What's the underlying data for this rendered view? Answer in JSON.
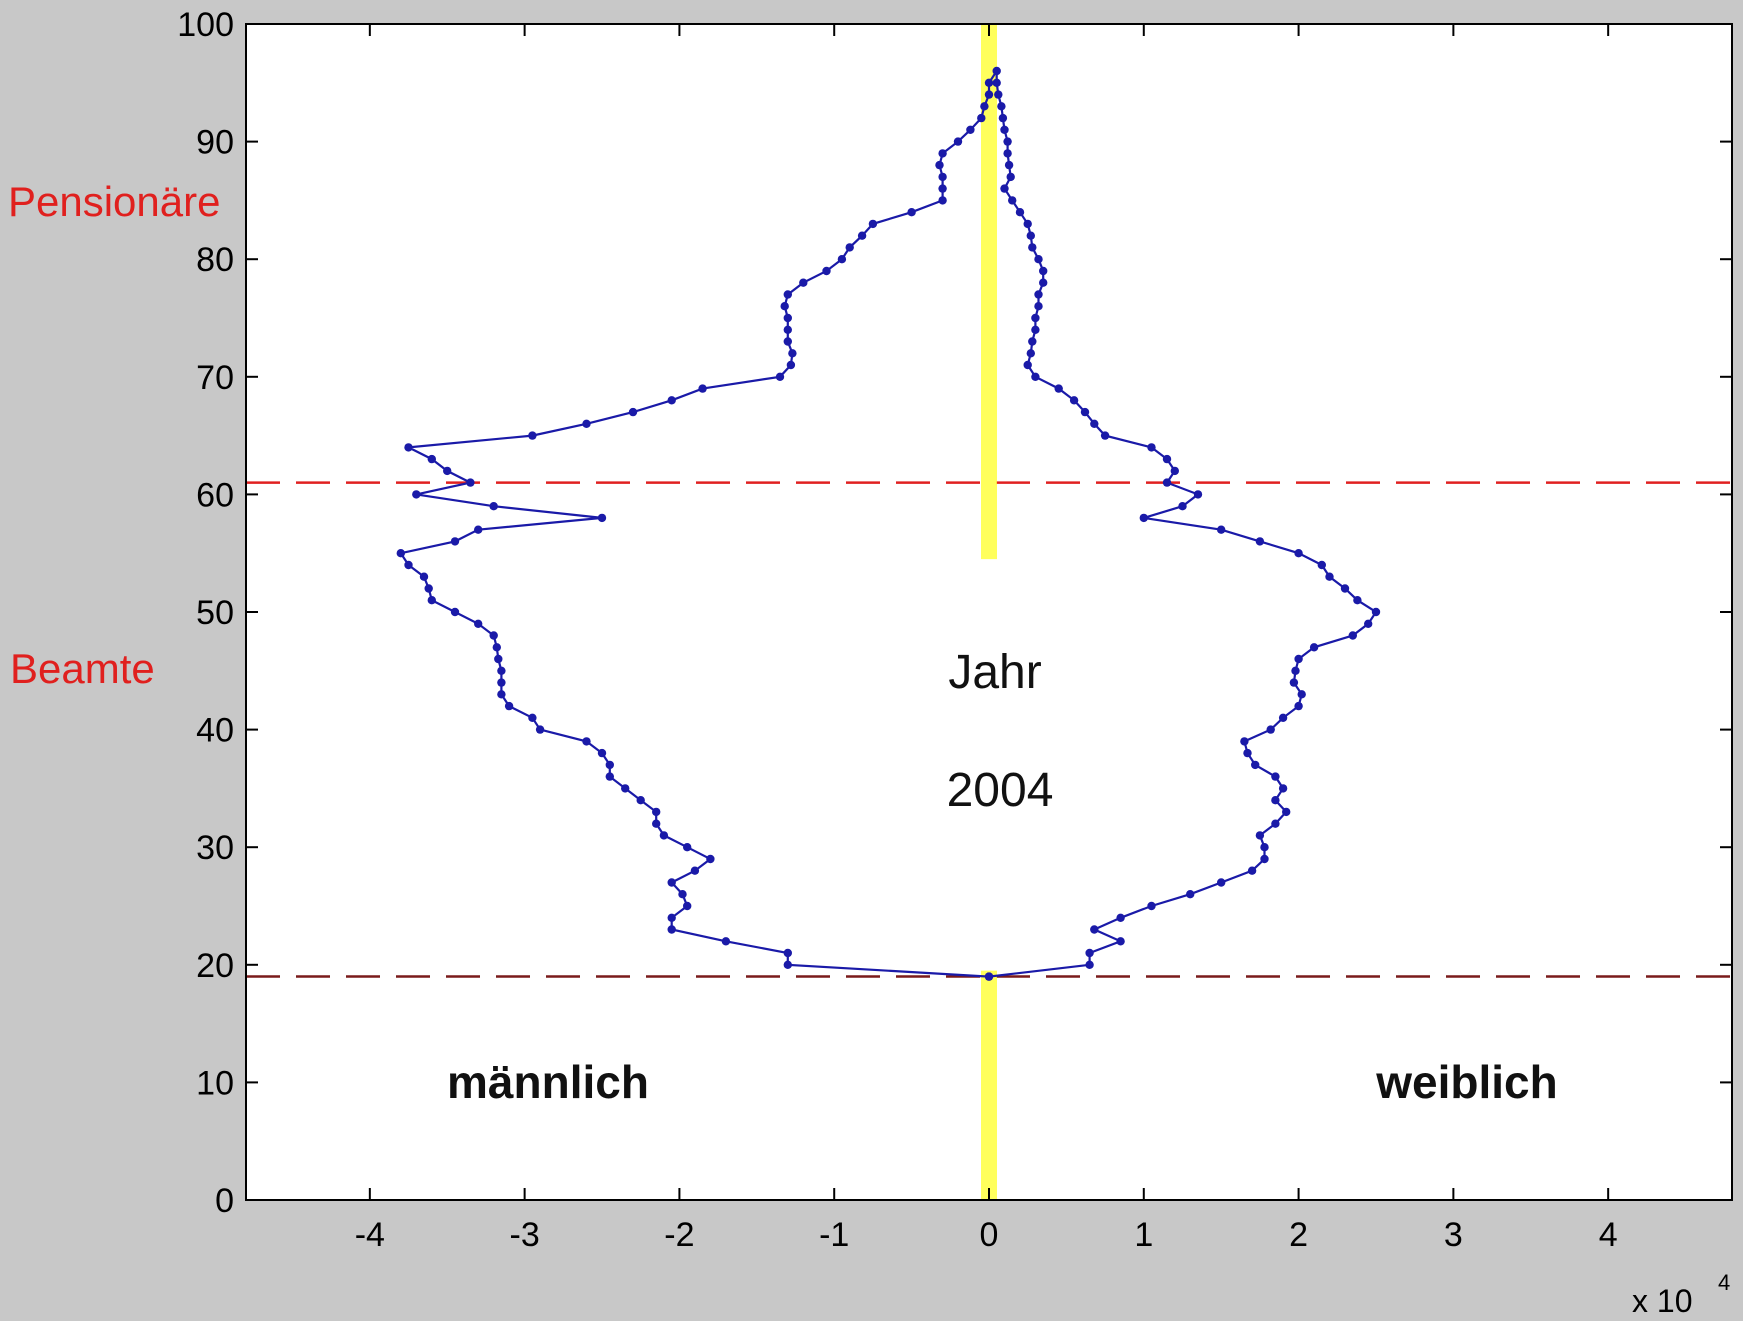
{
  "chart_data": {
    "type": "line",
    "xlim": [
      -4.8,
      4.8
    ],
    "ylim": [
      0,
      100
    ],
    "x_ticks": [
      "-4",
      "-3",
      "-2",
      "-1",
      "0",
      "1",
      "2",
      "3",
      "4"
    ],
    "y_ticks": [
      "0",
      "10",
      "20",
      "30",
      "40",
      "50",
      "60",
      "70",
      "80",
      "90",
      "100"
    ],
    "x_scale_label": "x 10",
    "x_scale_exponent": "4",
    "side_labels": {
      "upper": "Pensionäre",
      "lower": "Beamte"
    },
    "annotations": {
      "year_label": "Jahr",
      "year_value": "2004",
      "left_group": "männlich",
      "right_group": "weiblich"
    },
    "reference_lines": [
      {
        "y": 61,
        "color": "#e02020",
        "style": "dashed"
      },
      {
        "y": 19,
        "color": "#7a1a1a",
        "style": "dashed"
      }
    ],
    "center_line": {
      "x": 0,
      "color": "#ffff40"
    },
    "series": [
      {
        "color": "#1a1aa8",
        "points": [
          [
            0,
            19
          ],
          [
            -1.3,
            20
          ],
          [
            -1.3,
            21
          ],
          [
            -1.7,
            22
          ],
          [
            -2.05,
            23
          ],
          [
            -2.05,
            24
          ],
          [
            -1.95,
            25
          ],
          [
            -1.98,
            26
          ],
          [
            -2.05,
            27
          ],
          [
            -1.9,
            28
          ],
          [
            -1.8,
            29
          ],
          [
            -1.95,
            30
          ],
          [
            -2.1,
            31
          ],
          [
            -2.15,
            32
          ],
          [
            -2.15,
            33
          ],
          [
            -2.25,
            34
          ],
          [
            -2.35,
            35
          ],
          [
            -2.45,
            36
          ],
          [
            -2.45,
            37
          ],
          [
            -2.5,
            38
          ],
          [
            -2.6,
            39
          ],
          [
            -2.9,
            40
          ],
          [
            -2.95,
            41
          ],
          [
            -3.1,
            42
          ],
          [
            -3.15,
            43
          ],
          [
            -3.15,
            44
          ],
          [
            -3.15,
            45
          ],
          [
            -3.17,
            46
          ],
          [
            -3.18,
            47
          ],
          [
            -3.2,
            48
          ],
          [
            -3.3,
            49
          ],
          [
            -3.45,
            50
          ],
          [
            -3.6,
            51
          ],
          [
            -3.62,
            52
          ],
          [
            -3.65,
            53
          ],
          [
            -3.75,
            54
          ],
          [
            -3.8,
            55
          ],
          [
            -3.45,
            56
          ],
          [
            -3.3,
            57
          ],
          [
            -2.5,
            58
          ],
          [
            -3.2,
            59
          ],
          [
            -3.7,
            60
          ],
          [
            -3.35,
            61
          ],
          [
            -3.5,
            62
          ],
          [
            -3.6,
            63
          ],
          [
            -3.75,
            64
          ],
          [
            -2.95,
            65
          ],
          [
            -2.6,
            66
          ],
          [
            -2.3,
            67
          ],
          [
            -2.05,
            68
          ],
          [
            -1.85,
            69
          ],
          [
            -1.35,
            70
          ],
          [
            -1.28,
            71
          ],
          [
            -1.27,
            72
          ],
          [
            -1.3,
            73
          ],
          [
            -1.3,
            74
          ],
          [
            -1.3,
            75
          ],
          [
            -1.32,
            76
          ],
          [
            -1.3,
            77
          ],
          [
            -1.2,
            78
          ],
          [
            -1.05,
            79
          ],
          [
            -0.95,
            80
          ],
          [
            -0.9,
            81
          ],
          [
            -0.82,
            82
          ],
          [
            -0.75,
            83
          ],
          [
            -0.5,
            84
          ],
          [
            -0.3,
            85
          ],
          [
            -0.3,
            86
          ],
          [
            -0.3,
            87
          ],
          [
            -0.32,
            88
          ],
          [
            -0.3,
            89
          ],
          [
            -0.2,
            90
          ],
          [
            -0.12,
            91
          ],
          [
            -0.05,
            92
          ],
          [
            -0.03,
            93
          ],
          [
            0,
            94
          ],
          [
            0,
            95
          ],
          [
            0.05,
            96
          ],
          [
            0.05,
            95
          ],
          [
            0.06,
            94
          ],
          [
            0.08,
            93
          ],
          [
            0.09,
            92
          ],
          [
            0.1,
            91
          ],
          [
            0.12,
            90
          ],
          [
            0.12,
            89
          ],
          [
            0.13,
            88
          ],
          [
            0.14,
            87
          ],
          [
            0.1,
            86
          ],
          [
            0.15,
            85
          ],
          [
            0.2,
            84
          ],
          [
            0.25,
            83
          ],
          [
            0.27,
            82
          ],
          [
            0.28,
            81
          ],
          [
            0.32,
            80
          ],
          [
            0.35,
            79
          ],
          [
            0.35,
            78
          ],
          [
            0.32,
            77
          ],
          [
            0.32,
            76
          ],
          [
            0.3,
            75
          ],
          [
            0.3,
            74
          ],
          [
            0.28,
            73
          ],
          [
            0.27,
            72
          ],
          [
            0.25,
            71
          ],
          [
            0.3,
            70
          ],
          [
            0.45,
            69
          ],
          [
            0.55,
            68
          ],
          [
            0.62,
            67
          ],
          [
            0.68,
            66
          ],
          [
            0.75,
            65
          ],
          [
            1.05,
            64
          ],
          [
            1.15,
            63
          ],
          [
            1.2,
            62
          ],
          [
            1.15,
            61
          ],
          [
            1.35,
            60
          ],
          [
            1.25,
            59
          ],
          [
            1.0,
            58
          ],
          [
            1.5,
            57
          ],
          [
            1.75,
            56
          ],
          [
            2.0,
            55
          ],
          [
            2.15,
            54
          ],
          [
            2.2,
            53
          ],
          [
            2.3,
            52
          ],
          [
            2.38,
            51
          ],
          [
            2.5,
            50
          ],
          [
            2.45,
            49
          ],
          [
            2.35,
            48
          ],
          [
            2.1,
            47
          ],
          [
            2.0,
            46
          ],
          [
            1.98,
            45
          ],
          [
            1.97,
            44
          ],
          [
            2.02,
            43
          ],
          [
            2.0,
            42
          ],
          [
            1.9,
            41
          ],
          [
            1.82,
            40
          ],
          [
            1.65,
            39
          ],
          [
            1.67,
            38
          ],
          [
            1.72,
            37
          ],
          [
            1.85,
            36
          ],
          [
            1.9,
            35
          ],
          [
            1.85,
            34
          ],
          [
            1.92,
            33
          ],
          [
            1.85,
            32
          ],
          [
            1.75,
            31
          ],
          [
            1.78,
            30
          ],
          [
            1.78,
            29
          ],
          [
            1.7,
            28
          ],
          [
            1.5,
            27
          ],
          [
            1.3,
            26
          ],
          [
            1.05,
            25
          ],
          [
            0.85,
            24
          ],
          [
            0.68,
            23
          ],
          [
            0.85,
            22
          ],
          [
            0.65,
            21
          ],
          [
            0.65,
            20
          ],
          [
            0,
            19
          ]
        ]
      }
    ]
  }
}
